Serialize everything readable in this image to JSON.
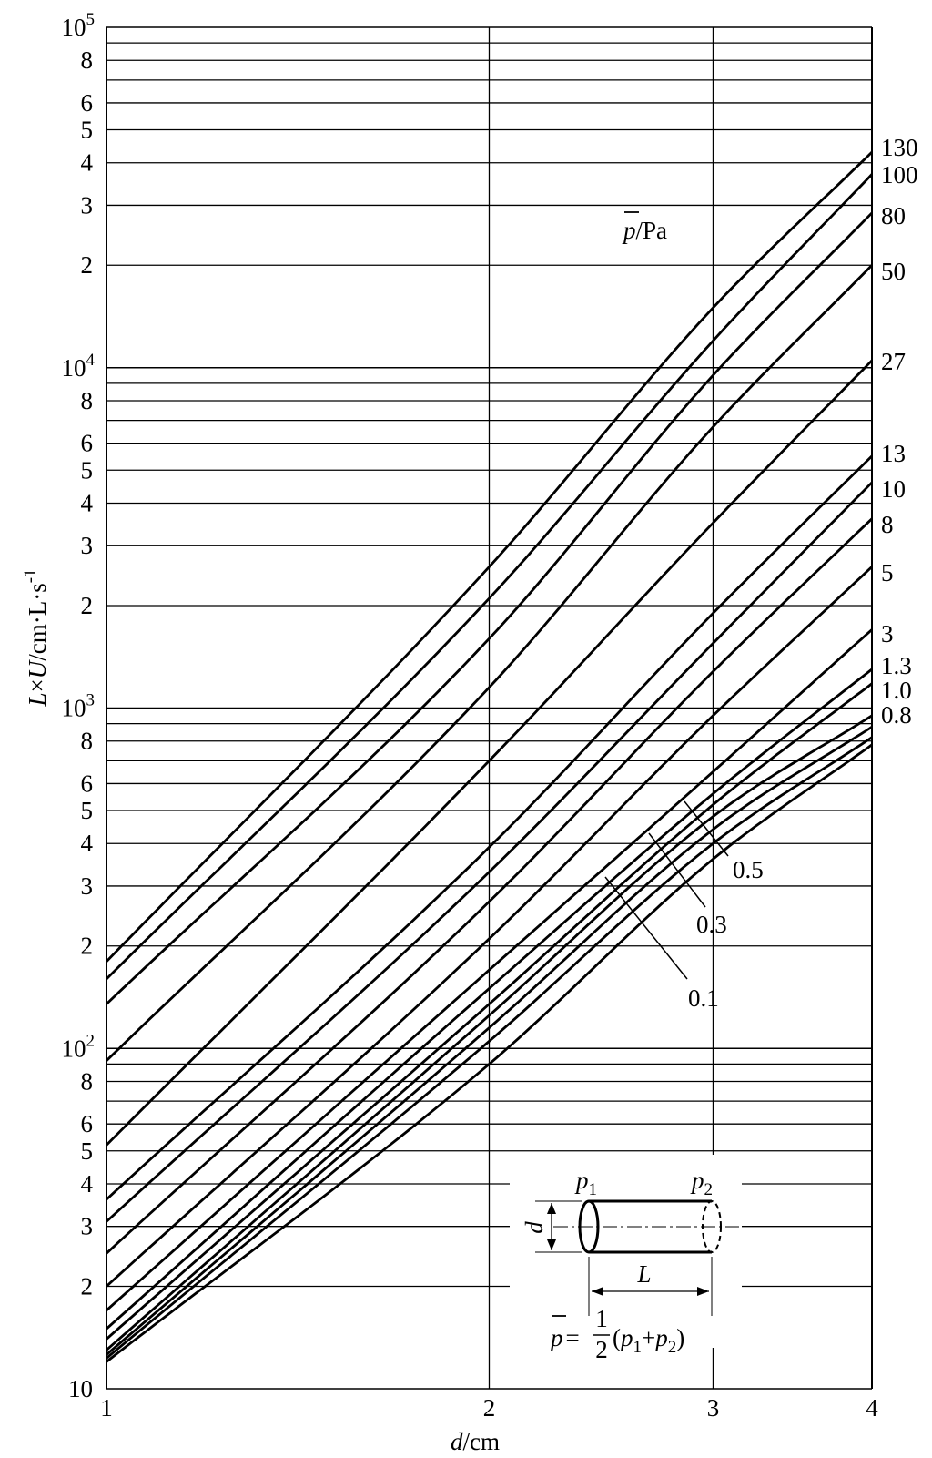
{
  "chart_data": {
    "type": "line",
    "xlabel": {
      "var": "d",
      "unit": "/cm"
    },
    "ylabel": {
      "var1": "L",
      "times": "×",
      "var2": "U",
      "unit": "/cm·L·s",
      "exp": "-1"
    },
    "xscale": "log",
    "yscale": "log",
    "xlim": [
      1,
      4
    ],
    "ylim": [
      10,
      100000
    ],
    "x_ticks": [
      "1",
      "2",
      "3",
      "4"
    ],
    "y_decade_ticks": [
      {
        "base": "10",
        "exp": ""
      },
      {
        "base": "10",
        "exp": "2"
      },
      {
        "base": "10",
        "exp": "3"
      },
      {
        "base": "10",
        "exp": "4"
      },
      {
        "base": "10",
        "exp": "5"
      }
    ],
    "y_minor_ticks": [
      "2",
      "3",
      "4",
      "5",
      "6",
      "8"
    ],
    "grid": true,
    "legend_title": {
      "var": "p",
      "unit": "/Pa"
    },
    "series": [
      {
        "name": "130",
        "x": [
          1,
          2,
          3,
          4
        ],
        "y": [
          180,
          2600,
          15000,
          43000
        ]
      },
      {
        "name": "100",
        "x": [
          1,
          2,
          3,
          4
        ],
        "y": [
          160,
          2100,
          12000,
          37000
        ]
      },
      {
        "name": "80",
        "x": [
          1,
          2,
          3,
          4
        ],
        "y": [
          135,
          1600,
          9500,
          28500
        ]
      },
      {
        "name": "50",
        "x": [
          1,
          2,
          3,
          4
        ],
        "y": [
          92,
          1150,
          6700,
          20000
        ]
      },
      {
        "name": "27",
        "x": [
          1,
          2,
          3,
          4
        ],
        "y": [
          52,
          700,
          3500,
          10500
        ]
      },
      {
        "name": "13",
        "x": [
          1,
          2,
          3,
          4
        ],
        "y": [
          36,
          390,
          1900,
          5500
        ]
      },
      {
        "name": "10",
        "x": [
          1,
          2,
          3,
          4
        ],
        "y": [
          31,
          330,
          1550,
          4600
        ]
      },
      {
        "name": "8",
        "x": [
          1,
          2,
          3,
          4
        ],
        "y": [
          25,
          270,
          1280,
          3600
        ]
      },
      {
        "name": "5",
        "x": [
          1,
          2,
          3,
          4
        ],
        "y": [
          20,
          210,
          950,
          2600
        ]
      },
      {
        "name": "3",
        "x": [
          1,
          2,
          3,
          4
        ],
        "y": [
          17,
          170,
          650,
          1700
        ]
      },
      {
        "name": "1.3",
        "x": [
          1,
          2,
          3,
          4
        ],
        "y": [
          15,
          150,
          560,
          1300
        ]
      },
      {
        "name": "1.0",
        "x": [
          1,
          2,
          3,
          4
        ],
        "y": [
          14,
          135,
          520,
          1180
        ]
      },
      {
        "name": "0.8",
        "x": [
          1,
          2,
          3,
          4
        ],
        "y": [
          13,
          125,
          480,
          950
        ]
      },
      {
        "name": "0.5",
        "x": [
          1,
          2,
          3,
          4
        ],
        "y": [
          12.6,
          115,
          440,
          880
        ]
      },
      {
        "name": "0.3",
        "x": [
          1,
          2,
          3,
          4
        ],
        "y": [
          12.3,
          105,
          400,
          820
        ]
      },
      {
        "name": "0.1",
        "x": [
          1,
          2,
          3,
          4
        ],
        "y": [
          12,
          90,
          360,
          780
        ]
      }
    ],
    "inset": {
      "p1": {
        "var": "p",
        "sub": "1"
      },
      "p2": {
        "var": "p",
        "sub": "2"
      },
      "d": "d",
      "L": "L",
      "formula": {
        "lhs": "p",
        "eq": "=",
        "num": "1",
        "den": "2",
        "rest_open": "(",
        "rest_p1": "p",
        "rest_sub1": "1",
        "rest_plus": "+",
        "rest_p2": "p",
        "rest_sub2": "2",
        "rest_close": ")"
      }
    }
  }
}
